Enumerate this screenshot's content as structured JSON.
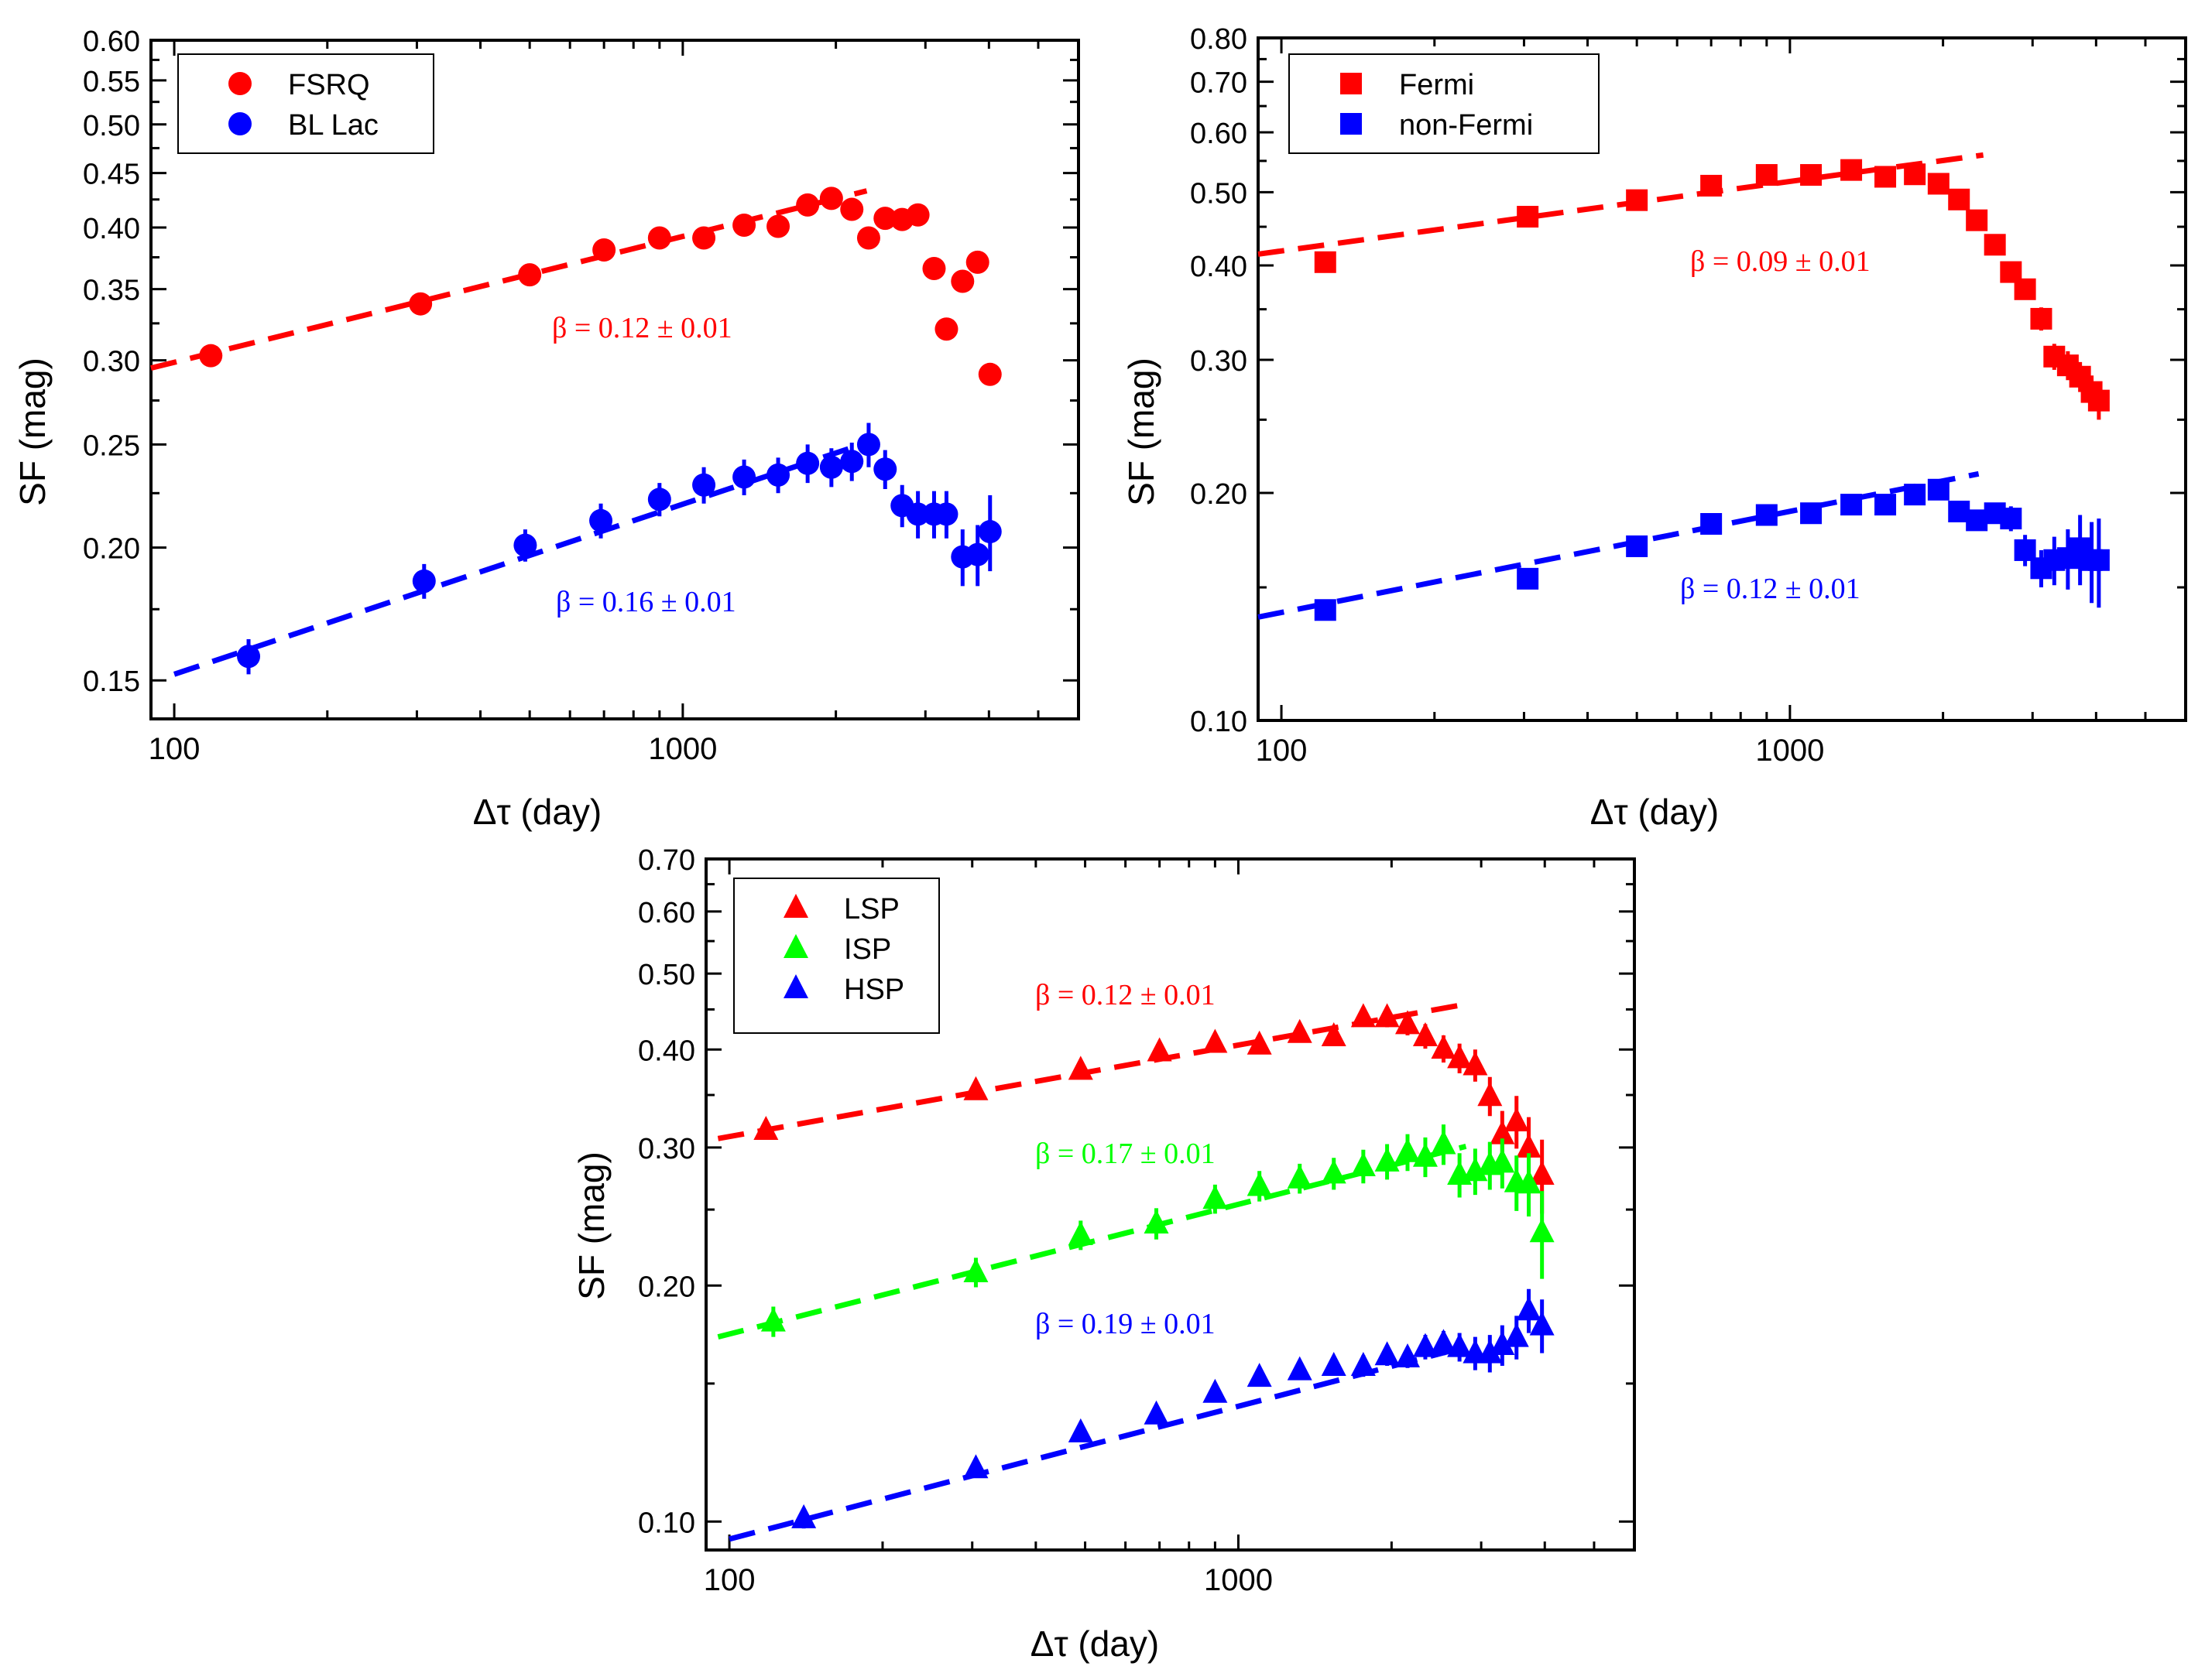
{
  "chart_data": [
    {
      "type": "scatter",
      "id": "panel_a",
      "xlabel": "Δτ (day)",
      "ylabel": "SF (mag)",
      "xscale": "log",
      "yscale": "log",
      "xlim": [
        90,
        6000
      ],
      "ylim": [
        0.138,
        0.6
      ],
      "xticks": [
        100,
        1000
      ],
      "xtick_labels": [
        "100",
        "1000"
      ],
      "yticks": [
        0.15,
        0.2,
        0.25,
        0.3,
        0.35,
        0.4,
        0.45,
        0.5,
        0.55,
        0.6
      ],
      "ytick_labels": [
        "0.15",
        "0.20",
        "0.25",
        "0.30",
        "0.35",
        "0.40",
        "0.45",
        "0.50",
        "0.55",
        "0.60"
      ],
      "marker": "circle",
      "legend": {
        "position": "top-left",
        "entries": [
          "FSRQ",
          "BL Lac"
        ]
      },
      "series": [
        {
          "name": "FSRQ",
          "color": "#ff0000",
          "x": [
            118,
            305,
            500,
            700,
            900,
            1100,
            1320,
            1540,
            1760,
            1960,
            2150,
            2320,
            2500,
            2700,
            2900,
            3120,
            3300,
            3550,
            3800,
            4020
          ],
          "y": [
            0.303,
            0.339,
            0.361,
            0.381,
            0.391,
            0.391,
            0.402,
            0.401,
            0.42,
            0.426,
            0.416,
            0.391,
            0.408,
            0.407,
            0.411,
            0.366,
            0.321,
            0.356,
            0.371,
            0.291
          ],
          "err": [
            0.004,
            0.004,
            0.004,
            0.004,
            0.004,
            0.004,
            0.004,
            0.004,
            0.005,
            0.005,
            0.005,
            0.005,
            0.005,
            0.005,
            0.005,
            0.006,
            0.006,
            0.006,
            0.006,
            0.006
          ],
          "fit": {
            "x": [
              90,
              2300
            ],
            "y": [
              0.295,
              0.433
            ],
            "label": "β = 0.12 ± 0.01"
          }
        },
        {
          "name": "BL Lac",
          "color": "#0000ff",
          "x": [
            140,
            310,
            490,
            690,
            900,
            1100,
            1320,
            1540,
            1760,
            1960,
            2150,
            2320,
            2500,
            2700,
            2900,
            3120,
            3300,
            3550,
            3800,
            4020
          ],
          "y": [
            0.158,
            0.186,
            0.201,
            0.212,
            0.222,
            0.229,
            0.233,
            0.234,
            0.24,
            0.238,
            0.241,
            0.25,
            0.237,
            0.219,
            0.215,
            0.215,
            0.215,
            0.196,
            0.197,
            0.207
          ],
          "err": [
            0.006,
            0.007,
            0.007,
            0.008,
            0.008,
            0.009,
            0.009,
            0.009,
            0.01,
            0.01,
            0.01,
            0.012,
            0.01,
            0.01,
            0.011,
            0.011,
            0.011,
            0.012,
            0.013,
            0.017
          ],
          "fit": {
            "x": [
              100,
              2300
            ],
            "y": [
              0.152,
              0.251
            ],
            "label": "β = 0.16 ± 0.01"
          }
        }
      ]
    },
    {
      "type": "scatter",
      "id": "panel_b",
      "xlabel": "Δτ (day)",
      "ylabel": "SF (mag)",
      "xscale": "log",
      "yscale": "log",
      "xlim": [
        90,
        6000
      ],
      "ylim": [
        0.1,
        0.8
      ],
      "xticks": [
        100,
        1000
      ],
      "xtick_labels": [
        "100",
        "1000"
      ],
      "yticks": [
        0.1,
        0.2,
        0.3,
        0.4,
        0.5,
        0.6,
        0.7,
        0.8
      ],
      "ytick_labels": [
        "0.10",
        "0.20",
        "0.30",
        "0.40",
        "0.50",
        "0.60",
        "0.70",
        "0.80"
      ],
      "marker": "square",
      "legend": {
        "position": "top-left",
        "entries": [
          "Fermi",
          "non-Fermi"
        ]
      },
      "series": [
        {
          "name": "Fermi",
          "color": "#ff0000",
          "x": [
            122,
            305,
            500,
            700,
            900,
            1100,
            1320,
            1540,
            1760,
            1960,
            2150,
            2330,
            2530,
            2720,
            2900,
            3120,
            3310,
            3520,
            3720,
            3920,
            4050
          ],
          "y": [
            0.404,
            0.464,
            0.488,
            0.51,
            0.527,
            0.527,
            0.535,
            0.524,
            0.528,
            0.513,
            0.489,
            0.459,
            0.426,
            0.392,
            0.372,
            0.34,
            0.303,
            0.295,
            0.285,
            0.272,
            0.265
          ],
          "err": [
            0.008,
            0.006,
            0.006,
            0.007,
            0.007,
            0.007,
            0.008,
            0.008,
            0.009,
            0.009,
            0.01,
            0.01,
            0.011,
            0.011,
            0.011,
            0.012,
            0.012,
            0.013,
            0.013,
            0.014,
            0.015
          ],
          "fit": {
            "x": [
              90,
              2400
            ],
            "y": [
              0.414,
              0.56
            ],
            "label": "β = 0.09 ± 0.01"
          }
        },
        {
          "name": "non-Fermi",
          "color": "#0000ff",
          "x": [
            122,
            305,
            500,
            700,
            900,
            1100,
            1320,
            1540,
            1760,
            1960,
            2150,
            2330,
            2530,
            2720,
            2900,
            3120,
            3310,
            3520,
            3720,
            3920,
            4050
          ],
          "y": [
            0.14,
            0.154,
            0.17,
            0.182,
            0.187,
            0.188,
            0.193,
            0.193,
            0.199,
            0.202,
            0.189,
            0.184,
            0.188,
            0.185,
            0.168,
            0.159,
            0.163,
            0.164,
            0.169,
            0.163,
            0.163
          ],
          "err": [
            0.002,
            0.003,
            0.003,
            0.003,
            0.003,
            0.003,
            0.003,
            0.003,
            0.004,
            0.004,
            0.004,
            0.005,
            0.006,
            0.007,
            0.008,
            0.009,
            0.012,
            0.015,
            0.018,
            0.02,
            0.022
          ],
          "fit": {
            "x": [
              90,
              2350
            ],
            "y": [
              0.137,
              0.212
            ],
            "label": "β = 0.12 ± 0.01"
          }
        }
      ]
    },
    {
      "type": "scatter",
      "id": "panel_c",
      "xlabel": "Δτ (day)",
      "ylabel": "SF (mag)",
      "xscale": "log",
      "yscale": "log",
      "xlim": [
        90,
        6000
      ],
      "ylim": [
        0.092,
        0.7
      ],
      "xticks": [
        100,
        1000
      ],
      "xtick_labels": [
        "100",
        "1000"
      ],
      "yticks": [
        0.1,
        0.2,
        0.3,
        0.4,
        0.5,
        0.6,
        0.7
      ],
      "ytick_labels": [
        "0.10",
        "0.20",
        "0.30",
        "0.40",
        "0.50",
        "0.60",
        "0.70"
      ],
      "marker": "triangle",
      "legend": {
        "position": "top-left",
        "entries": [
          "LSP",
          "ISP",
          "HSP"
        ]
      },
      "series": [
        {
          "name": "LSP",
          "color": "#ff0000",
          "x": [
            118,
            305,
            490,
            700,
            900,
            1100,
            1320,
            1540,
            1760,
            1960,
            2150,
            2330,
            2530,
            2720,
            2920,
            3120,
            3300,
            3520,
            3720,
            3950
          ],
          "y": [
            0.316,
            0.355,
            0.377,
            0.398,
            0.408,
            0.406,
            0.42,
            0.416,
            0.44,
            0.44,
            0.431,
            0.416,
            0.401,
            0.39,
            0.382,
            0.349,
            0.312,
            0.324,
            0.3,
            0.277
          ],
          "err": [
            0.006,
            0.006,
            0.007,
            0.008,
            0.008,
            0.009,
            0.009,
            0.01,
            0.012,
            0.013,
            0.014,
            0.015,
            0.016,
            0.017,
            0.018,
            0.02,
            0.022,
            0.025,
            0.028,
            0.03
          ],
          "fit": {
            "x": [
              95,
              2800
            ],
            "y": [
              0.308,
              0.457
            ],
            "label": "β = 0.12 ± 0.01"
          }
        },
        {
          "name": "ISP",
          "color": "#00ff00",
          "x": [
            122,
            305,
            490,
            690,
            900,
            1100,
            1320,
            1540,
            1760,
            1960,
            2150,
            2330,
            2530,
            2720,
            2920,
            3120,
            3300,
            3520,
            3720,
            3950
          ],
          "y": [
            0.18,
            0.208,
            0.232,
            0.24,
            0.258,
            0.268,
            0.274,
            0.278,
            0.284,
            0.288,
            0.296,
            0.292,
            0.303,
            0.277,
            0.28,
            0.285,
            0.287,
            0.271,
            0.27,
            0.234
          ],
          "err": [
            0.008,
            0.009,
            0.01,
            0.011,
            0.011,
            0.012,
            0.012,
            0.013,
            0.014,
            0.015,
            0.016,
            0.017,
            0.018,
            0.018,
            0.019,
            0.02,
            0.021,
            0.022,
            0.025,
            0.03
          ],
          "fit": {
            "x": [
              95,
              2800
            ],
            "y": [
              0.172,
              0.301
            ],
            "label": "β = 0.17 ± 0.01"
          }
        },
        {
          "name": "HSP",
          "color": "#0000ff",
          "x": [
            140,
            305,
            490,
            690,
            900,
            1100,
            1320,
            1540,
            1760,
            1960,
            2150,
            2330,
            2530,
            2720,
            2920,
            3120,
            3300,
            3520,
            3720,
            3950
          ],
          "y": [
            0.101,
            0.117,
            0.13,
            0.137,
            0.146,
            0.153,
            0.156,
            0.158,
            0.158,
            0.163,
            0.162,
            0.167,
            0.169,
            0.167,
            0.164,
            0.164,
            0.168,
            0.172,
            0.186,
            0.178
          ],
          "err": [
            0.003,
            0.003,
            0.003,
            0.003,
            0.004,
            0.004,
            0.004,
            0.004,
            0.005,
            0.005,
            0.005,
            0.006,
            0.006,
            0.007,
            0.008,
            0.009,
            0.01,
            0.011,
            0.012,
            0.014
          ],
          "fit": {
            "x": [
              100,
              2700
            ],
            "y": [
              0.095,
              0.166
            ],
            "label": "β = 0.19 ± 0.01"
          }
        }
      ]
    }
  ]
}
